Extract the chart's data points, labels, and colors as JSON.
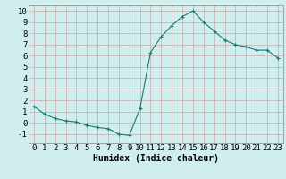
{
  "x": [
    0,
    1,
    2,
    3,
    4,
    5,
    6,
    7,
    8,
    9,
    10,
    11,
    12,
    13,
    14,
    15,
    16,
    17,
    18,
    19,
    20,
    21,
    22,
    23
  ],
  "y": [
    1.5,
    0.8,
    0.4,
    0.2,
    0.1,
    -0.2,
    -0.4,
    -0.5,
    -1.0,
    -1.1,
    1.3,
    6.3,
    7.7,
    8.7,
    9.5,
    10.0,
    9.0,
    8.2,
    7.4,
    7.0,
    6.8,
    6.5,
    6.5,
    5.8
  ],
  "line_color": "#1a7a6e",
  "marker": "+",
  "marker_size": 3,
  "bg_color": "#d0eeee",
  "grid_color": "#c8aaaa",
  "xlabel": "Humidex (Indice chaleur)",
  "ylim": [
    -1.8,
    10.5
  ],
  "xlim": [
    -0.5,
    23.5
  ],
  "yticks": [
    -1,
    0,
    1,
    2,
    3,
    4,
    5,
    6,
    7,
    8,
    9,
    10
  ],
  "xticks": [
    0,
    1,
    2,
    3,
    4,
    5,
    6,
    7,
    8,
    9,
    10,
    11,
    12,
    13,
    14,
    15,
    16,
    17,
    18,
    19,
    20,
    21,
    22,
    23
  ],
  "xlabel_fontsize": 7,
  "tick_fontsize": 6.5
}
